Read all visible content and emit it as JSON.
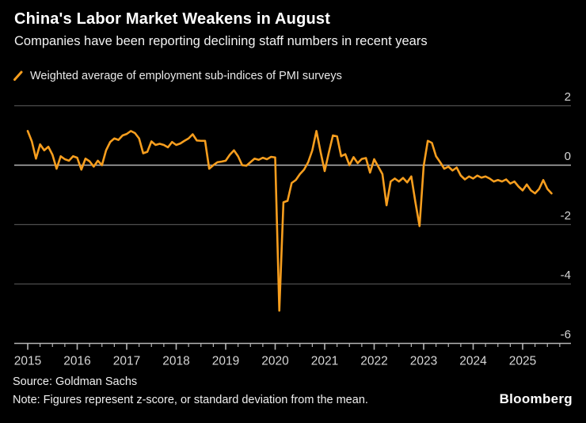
{
  "header": {
    "title": "China's Labor Market Weakens in August",
    "subtitle": "Companies have been reporting declining staff numbers in recent years"
  },
  "legend": {
    "label": "Weighted average of employment sub-indices of PMI surveys",
    "marker_color": "#F79E1E"
  },
  "chart_data": {
    "type": "line",
    "title": "Weighted average of employment sub-indices of PMI surveys",
    "frequency": "monthly",
    "start_year": 2015,
    "start_month": 1,
    "end_label": "August 2025",
    "values": [
      1.15,
      0.8,
      0.22,
      0.7,
      0.5,
      0.62,
      0.35,
      -0.12,
      0.3,
      0.2,
      0.15,
      0.3,
      0.25,
      -0.15,
      0.22,
      0.13,
      -0.05,
      0.15,
      0.0,
      0.5,
      0.78,
      0.9,
      0.85,
      1.0,
      1.05,
      1.15,
      1.08,
      0.9,
      0.4,
      0.45,
      0.8,
      0.68,
      0.72,
      0.68,
      0.6,
      0.78,
      0.68,
      0.73,
      0.82,
      0.9,
      1.04,
      0.83,
      0.82,
      0.82,
      -0.12,
      0.0,
      0.1,
      0.12,
      0.15,
      0.35,
      0.5,
      0.3,
      0.0,
      -0.02,
      0.1,
      0.22,
      0.18,
      0.25,
      0.2,
      0.28,
      0.26,
      -4.9,
      -1.25,
      -1.2,
      -0.6,
      -0.5,
      -0.3,
      -0.15,
      0.1,
      0.5,
      1.15,
      0.45,
      -0.2,
      0.42,
      1.0,
      0.97,
      0.3,
      0.37,
      0.0,
      0.27,
      0.07,
      0.21,
      0.24,
      -0.25,
      0.2,
      -0.05,
      -0.3,
      -1.35,
      -0.55,
      -0.45,
      -0.55,
      -0.43,
      -0.58,
      -0.38,
      -1.25,
      -2.05,
      -0.03,
      0.82,
      0.75,
      0.3,
      0.1,
      -0.12,
      -0.05,
      -0.18,
      -0.08,
      -0.35,
      -0.48,
      -0.38,
      -0.45,
      -0.35,
      -0.42,
      -0.38,
      -0.45,
      -0.55,
      -0.5,
      -0.55,
      -0.48,
      -0.62,
      -0.55,
      -0.72,
      -0.85,
      -0.65,
      -0.85,
      -0.95,
      -0.8,
      -0.5,
      -0.8,
      -0.95
    ],
    "ylim": [
      -6,
      2
    ],
    "yticks": [
      2,
      0,
      -2,
      -4,
      -6
    ],
    "xticks": [
      2015,
      2016,
      2017,
      2018,
      2019,
      2020,
      2021,
      2022,
      2023,
      2024,
      2025
    ],
    "minor_tick_interval_years": 0.25,
    "x_axis_end": 2025.75,
    "grid": "horizontal",
    "legend_position": "top-left",
    "line_color": "#F79E1E",
    "grid_color": "#4d4d4d",
    "zero_line_color": "#b5b5b5",
    "axis_color": "#b5b5b5",
    "tick_label_color": "#d6d6d6",
    "background_color": "#000000"
  },
  "footer": {
    "source": "Source: Goldman Sachs",
    "note": "Note: Figures represent z-score, or standard deviation from the mean.",
    "brand": "Bloomberg"
  }
}
